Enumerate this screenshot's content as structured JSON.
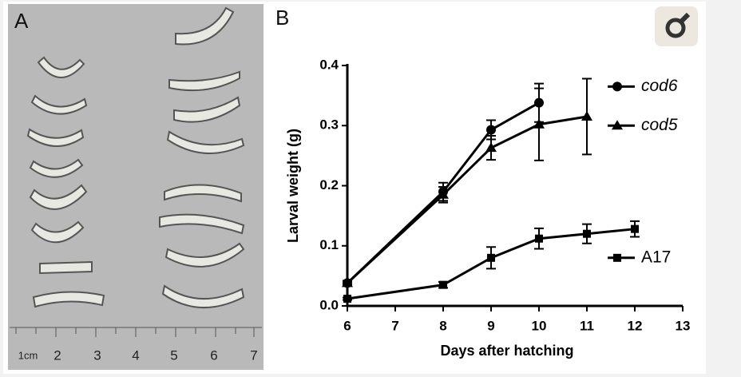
{
  "photo_panel": {
    "label": "A",
    "ruler_labels": [
      "1cm",
      "2",
      "3",
      "4",
      "5",
      "6",
      "7"
    ]
  },
  "chart_data": {
    "type": "line",
    "panel_label": "B",
    "x_label": "Days after hatching",
    "y_label": "Larval weight (g)",
    "xlim": [
      6,
      13
    ],
    "xticks": [
      6,
      7,
      8,
      9,
      10,
      11,
      12,
      13
    ],
    "ylim": [
      0,
      0.4
    ],
    "yticks": [
      {
        "value": 0,
        "label": "0.0"
      },
      0.1,
      0.2,
      0.3,
      0.4
    ],
    "series": [
      {
        "name": "cod6",
        "color": "#000000",
        "marker": "circle",
        "x": [
          6,
          8,
          9,
          10
        ],
        "values": [
          0.038,
          0.19,
          0.293,
          0.338
        ],
        "errors": [
          0.004,
          0.015,
          0.016,
          0.032
        ]
      },
      {
        "name": "cod5",
        "color": "#000000",
        "marker": "triangle",
        "x": [
          6,
          8,
          9,
          10,
          11
        ],
        "values": [
          0.038,
          0.185,
          0.263,
          0.302,
          0.315
        ],
        "errors": [
          0.003,
          0.013,
          0.02,
          0.06,
          0.063
        ]
      },
      {
        "name": "A17",
        "color": "#000000",
        "marker": "square",
        "x": [
          6,
          8,
          9,
          10,
          11,
          12
        ],
        "values": [
          0.012,
          0.035,
          0.08,
          0.112,
          0.12,
          0.128
        ],
        "errors": [
          0.002,
          0.005,
          0.018,
          0.017,
          0.016,
          0.013
        ]
      }
    ]
  }
}
